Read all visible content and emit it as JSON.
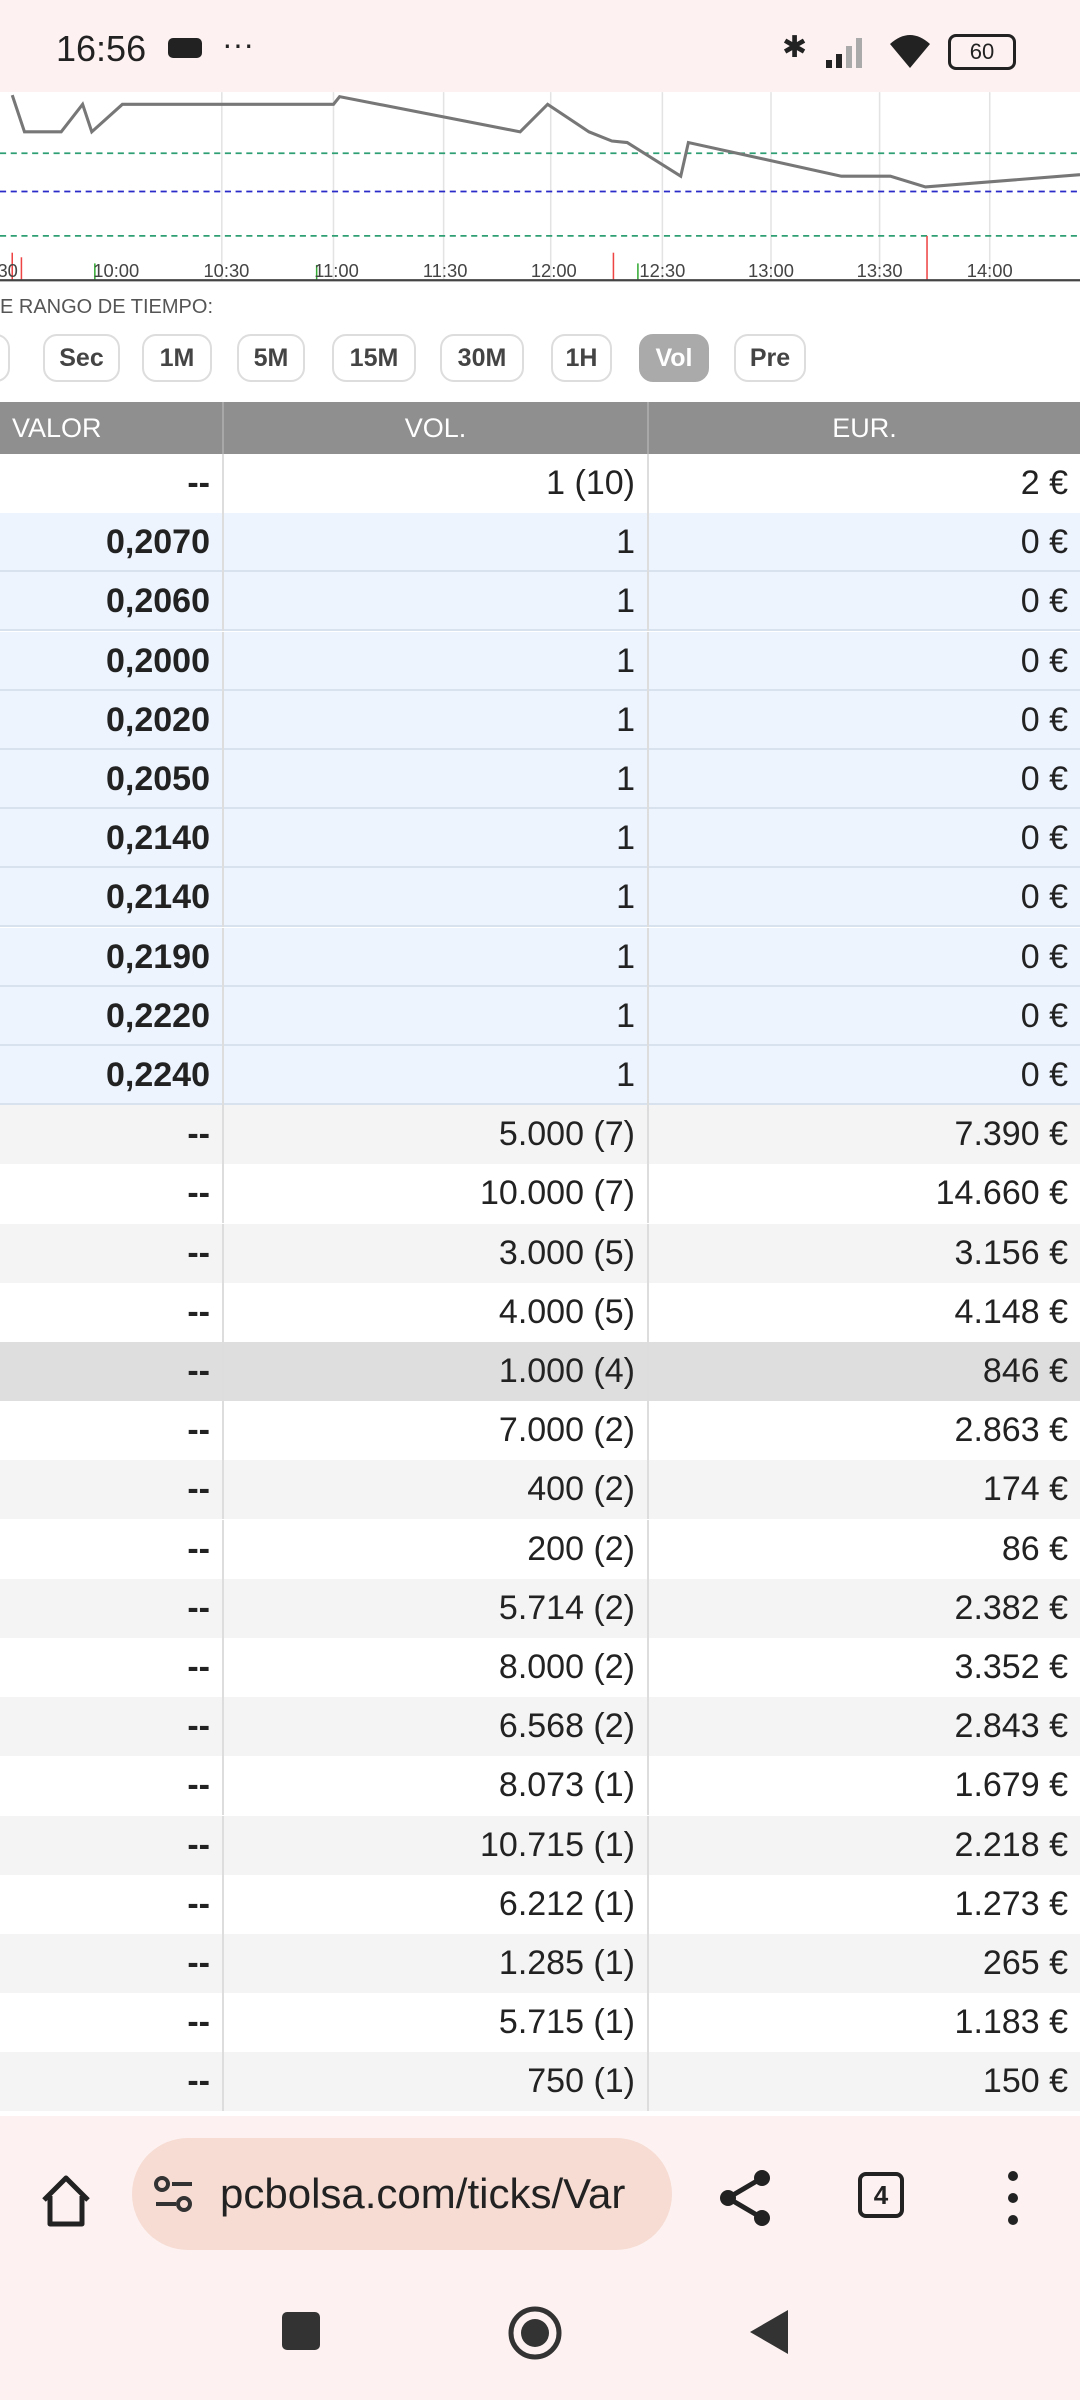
{
  "status_bar": {
    "time": "16:56",
    "battery": "60"
  },
  "chart": {
    "time_labels": [
      "30",
      "10:00",
      "10:30",
      "11:00",
      "11:30",
      "12:00",
      "12:30",
      "13:00",
      "13:30",
      "14:00"
    ]
  },
  "range_label": "E RANGO DE TIEMPO:",
  "range_buttons": [
    "Sec",
    "1M",
    "5M",
    "15M",
    "30M",
    "1H",
    "Vol",
    "Pre"
  ],
  "table": {
    "headers": [
      "VALOR",
      "VOL.",
      "EUR."
    ],
    "rows": [
      [
        "--",
        "1 (10)",
        "2 €"
      ],
      [
        "0,2070",
        "1",
        "0 €"
      ],
      [
        "0,2060",
        "1",
        "0 €"
      ],
      [
        "0,2000",
        "1",
        "0 €"
      ],
      [
        "0,2020",
        "1",
        "0 €"
      ],
      [
        "0,2050",
        "1",
        "0 €"
      ],
      [
        "0,2140",
        "1",
        "0 €"
      ],
      [
        "0,2140",
        "1",
        "0 €"
      ],
      [
        "0,2190",
        "1",
        "0 €"
      ],
      [
        "0,2220",
        "1",
        "0 €"
      ],
      [
        "0,2240",
        "1",
        "0 €"
      ],
      [
        "--",
        "5.000 (7)",
        "7.390 €"
      ],
      [
        "--",
        "10.000 (7)",
        "14.660 €"
      ],
      [
        "--",
        "3.000 (5)",
        "3.156 €"
      ],
      [
        "--",
        "4.000 (5)",
        "4.148 €"
      ],
      [
        "--",
        "1.000 (4)",
        "846 €"
      ],
      [
        "--",
        "7.000 (2)",
        "2.863 €"
      ],
      [
        "--",
        "400 (2)",
        "174 €"
      ],
      [
        "--",
        "200 (2)",
        "86 €"
      ],
      [
        "--",
        "5.714 (2)",
        "2.382 €"
      ],
      [
        "--",
        "8.000 (2)",
        "3.352 €"
      ],
      [
        "--",
        "6.568 (2)",
        "2.843 €"
      ],
      [
        "--",
        "8.073 (1)",
        "1.679 €"
      ],
      [
        "--",
        "10.715 (1)",
        "2.218 €"
      ],
      [
        "--",
        "6.212 (1)",
        "1.273 €"
      ],
      [
        "--",
        "1.285 (1)",
        "265 €"
      ],
      [
        "--",
        "5.715 (1)",
        "1.183 €"
      ],
      [
        "--",
        "750 (1)",
        "150 €"
      ]
    ]
  },
  "browser": {
    "url": "pcbolsa.com/ticks/Var",
    "tab_count": "4"
  }
}
